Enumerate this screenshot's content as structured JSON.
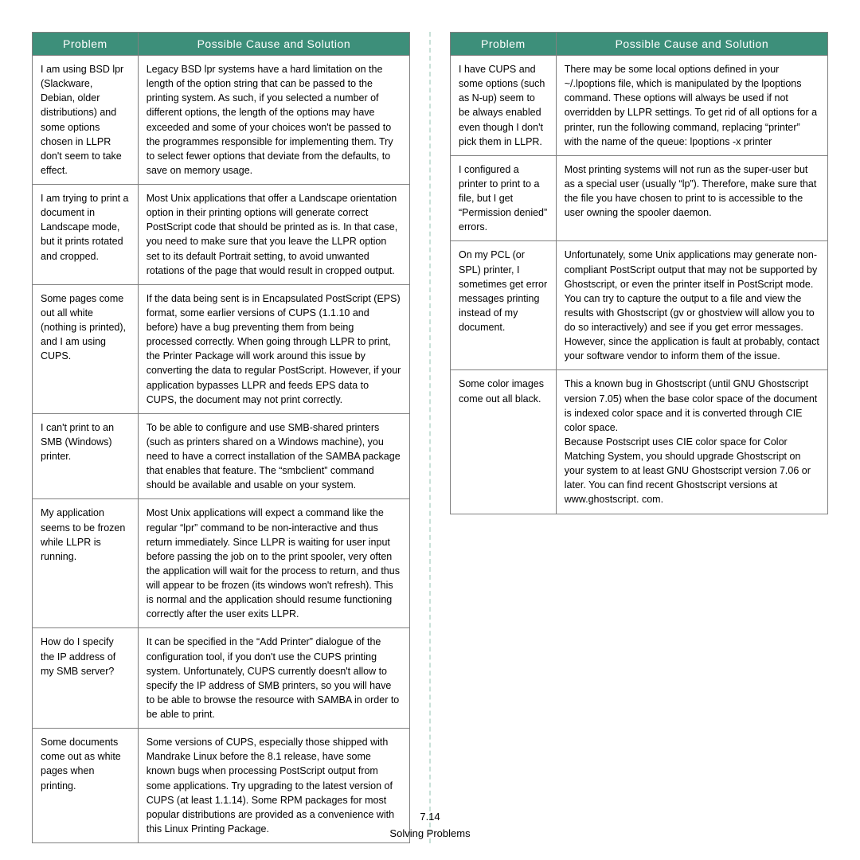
{
  "styling": {
    "header_bg": "#3d8f7a",
    "header_text_color": "#ffffff",
    "border_color": "#808080",
    "divider_color": "#c8e0d8",
    "body_text_color": "#000000",
    "page_bg": "#ffffff",
    "body_font_size": 12.5,
    "header_font_size": 14,
    "footer_font_size": 13,
    "col_problem_width_pct": 28,
    "col_solution_width_pct": 72
  },
  "headers": {
    "problem": "Problem",
    "solution": "Possible Cause and Solution"
  },
  "left_table": {
    "rows": [
      {
        "problem": "I am using BSD lpr (Slackware, Debian, older distributions) and some options chosen in LLPR don't seem to take effect.",
        "solution": "Legacy BSD lpr systems have a hard limitation on the length of the option string that can be passed to the printing system. As such, if you selected a number of different options, the length of the options may have exceeded and some of your choices won't be passed to the programmes responsible for implementing them. Try to select fewer options that deviate from the defaults, to save on memory usage."
      },
      {
        "problem": "I am trying to print a document in Landscape mode, but it prints rotated and cropped.",
        "solution": "Most Unix applications that offer a Landscape orientation option in their printing options will generate correct PostScript code that should be printed as is. In that case, you need to make sure that you leave the LLPR option set to its default Portrait setting, to avoid unwanted rotations of the page that would result in cropped output."
      },
      {
        "problem": "Some pages come out all white (nothing is printed), and I am using CUPS.",
        "solution": "If the data being sent is in Encapsulated PostScript (EPS) format, some earlier versions of CUPS (1.1.10 and before) have a bug preventing them from being processed correctly. When going through LLPR to print, the Printer Package will work around this issue by converting the data to regular PostScript. However, if your application bypasses LLPR and feeds EPS data to CUPS, the document may not print correctly."
      },
      {
        "problem": "I can't print to an SMB (Windows) printer.",
        "solution": "To be able to configure and use SMB-shared printers (such as printers shared on a Windows machine), you need to have a correct installation of the SAMBA package that enables that feature. The “smbclient” command should be available and usable on your system."
      },
      {
        "problem": "My application seems to be frozen while LLPR is running.",
        "solution": "Most Unix applications will expect a command like the regular “lpr” command to be non-interactive and thus return immediately. Since LLPR is waiting for user input before passing the job on to the print spooler, very often the application will wait for the process to return, and thus will appear to be frozen (its windows won't refresh). This is normal and the application should resume functioning correctly after the user exits LLPR."
      },
      {
        "problem": "How do I specify the IP address of my SMB server?",
        "solution": "It can be specified in the “Add Printer” dialogue of the configuration tool, if you don't use the CUPS printing system. Unfortunately, CUPS currently doesn't allow to specify the IP address of SMB printers, so you will have to be able to browse the resource with SAMBA in order to be able to print."
      },
      {
        "problem": "Some documents come out as white pages when printing.",
        "solution": "Some versions of CUPS, especially those shipped with Mandrake Linux before the 8.1 release, have some known bugs when processing PostScript output from some applications. Try upgrading to the latest version of CUPS (at least 1.1.14). Some RPM packages for most popular distributions are provided as a convenience with this Linux Printing Package."
      }
    ]
  },
  "right_table": {
    "rows": [
      {
        "problem": "I have CUPS and some options (such as N-up) seem to be always enabled even though I don't pick them in LLPR.",
        "solution": "There may be some local options defined in your ~/.lpoptions file, which is manipulated by the lpoptions command. These options will always be used if not overridden by LLPR settings. To get rid of all options for a printer, run the following command, replacing “printer” with the name of the queue: lpoptions -x printer"
      },
      {
        "problem": "I configured a printer to print to a file, but I get “Permission denied” errors.",
        "solution": "Most printing systems will not run as the super-user but as a special user (usually “lp”). Therefore, make sure that the file you have chosen to print to is accessible to the user owning the spooler daemon."
      },
      {
        "problem": "On my PCL (or SPL) printer, I sometimes get error messages printing instead of my document.",
        "solution": "Unfortunately, some Unix applications may generate non-compliant PostScript output that may not be supported by Ghostscript, or even the printer itself in PostScript mode. You can try to capture the output to a file and view the results with Ghostscript (gv or ghostview will allow you to do so interactively) and see if you get error messages. However, since the application is fault at probably, contact your software vendor to inform them of the issue."
      },
      {
        "problem": "Some color images come out all black.",
        "solution": "This a known bug in Ghostscript (until GNU Ghostscript version 7.05) when the base color space of the document is indexed color space and it is converted through CIE color space.\nBecause Postscript uses CIE color space for Color Matching System, you should upgrade Ghostscript on your system to at least GNU Ghostscript version 7.06 or later. You can find recent Ghostscript versions at www.ghostscript. com."
      }
    ]
  },
  "footer": {
    "page_num": "7.14",
    "section_title": "Solving Problems"
  }
}
